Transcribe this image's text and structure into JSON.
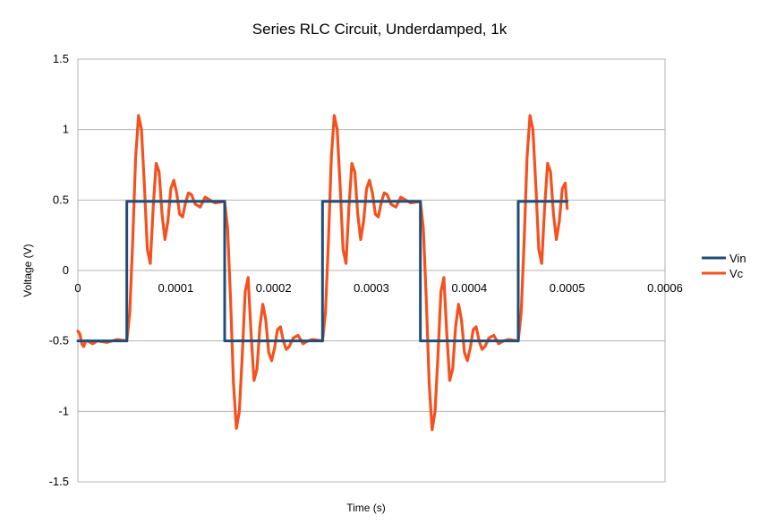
{
  "chart_data": {
    "type": "line",
    "title": "Series RLC Circuit, Underdamped, 1k",
    "xlabel": "Time (s)",
    "ylabel": "Voltage (V)",
    "xlim": [
      0,
      0.0006
    ],
    "ylim": [
      -1.5,
      1.5
    ],
    "x_ticks": [
      0,
      0.0001,
      0.0002,
      0.0003,
      0.0004,
      0.0005,
      0.0006
    ],
    "x_tick_labels": [
      "0",
      "0.0001",
      "0.0002",
      "0.0003",
      "0.0004",
      "0.0005",
      "0.0006"
    ],
    "y_ticks": [
      1.5,
      1,
      0.5,
      0,
      -0.5,
      -1,
      -1.5
    ],
    "y_tick_labels": [
      "1.5",
      "1",
      "0.5",
      "0",
      "-0.5",
      "-1",
      "-1.5"
    ],
    "grid": true,
    "legend_position": "right",
    "series": [
      {
        "name": "Vin",
        "color": "#1f4e79",
        "points": [
          [
            0,
            -0.5
          ],
          [
            5e-05,
            -0.5
          ],
          [
            5e-05,
            0.49
          ],
          [
            0.00015,
            0.49
          ],
          [
            0.00015,
            -0.5
          ],
          [
            0.00025,
            -0.5
          ],
          [
            0.00025,
            0.49
          ],
          [
            0.00035,
            0.49
          ],
          [
            0.00035,
            -0.5
          ],
          [
            0.00045,
            -0.5
          ],
          [
            0.00045,
            0.49
          ],
          [
            0.0005,
            0.49
          ]
        ]
      },
      {
        "name": "Vc",
        "color": "#f4511e",
        "points": [
          [
            0,
            -0.43
          ],
          [
            2e-06,
            -0.45
          ],
          [
            4e-06,
            -0.52
          ],
          [
            6e-06,
            -0.54
          ],
          [
            8e-06,
            -0.5
          ],
          [
            1e-05,
            -0.5
          ],
          [
            1.5e-05,
            -0.52
          ],
          [
            2e-05,
            -0.5
          ],
          [
            3e-05,
            -0.51
          ],
          [
            4e-05,
            -0.49
          ],
          [
            5e-05,
            -0.5
          ],
          [
            5.3e-05,
            -0.3
          ],
          [
            5.6e-05,
            0.2
          ],
          [
            5.9e-05,
            0.8
          ],
          [
            6.2e-05,
            1.1
          ],
          [
            6.5e-05,
            1.0
          ],
          [
            6.8e-05,
            0.6
          ],
          [
            7.1e-05,
            0.15
          ],
          [
            7.4e-05,
            0.05
          ],
          [
            7.7e-05,
            0.45
          ],
          [
            8e-05,
            0.76
          ],
          [
            8.3e-05,
            0.7
          ],
          [
            8.6e-05,
            0.4
          ],
          [
            8.9e-05,
            0.22
          ],
          [
            9.2e-05,
            0.35
          ],
          [
            9.5e-05,
            0.58
          ],
          [
            9.8e-05,
            0.64
          ],
          [
            0.000101,
            0.55
          ],
          [
            0.000104,
            0.4
          ],
          [
            0.000107,
            0.38
          ],
          [
            0.00011,
            0.48
          ],
          [
            0.000113,
            0.55
          ],
          [
            0.000116,
            0.54
          ],
          [
            0.00012,
            0.47
          ],
          [
            0.000125,
            0.45
          ],
          [
            0.00013,
            0.52
          ],
          [
            0.000135,
            0.5
          ],
          [
            0.00014,
            0.48
          ],
          [
            0.00015,
            0.49
          ],
          [
            0.000153,
            0.3
          ],
          [
            0.000156,
            -0.2
          ],
          [
            0.000159,
            -0.8
          ],
          [
            0.000162,
            -1.12
          ],
          [
            0.000165,
            -1.0
          ],
          [
            0.000168,
            -0.6
          ],
          [
            0.000171,
            -0.15
          ],
          [
            0.000174,
            -0.05
          ],
          [
            0.000177,
            -0.45
          ],
          [
            0.00018,
            -0.78
          ],
          [
            0.000183,
            -0.7
          ],
          [
            0.000186,
            -0.4
          ],
          [
            0.000189,
            -0.24
          ],
          [
            0.000192,
            -0.35
          ],
          [
            0.000195,
            -0.58
          ],
          [
            0.000198,
            -0.64
          ],
          [
            0.000201,
            -0.55
          ],
          [
            0.000204,
            -0.42
          ],
          [
            0.000207,
            -0.4
          ],
          [
            0.00021,
            -0.5
          ],
          [
            0.000213,
            -0.56
          ],
          [
            0.000216,
            -0.54
          ],
          [
            0.00022,
            -0.48
          ],
          [
            0.000225,
            -0.46
          ],
          [
            0.00023,
            -0.52
          ],
          [
            0.000235,
            -0.5
          ],
          [
            0.00024,
            -0.49
          ],
          [
            0.00025,
            -0.5
          ],
          [
            0.000253,
            -0.3
          ],
          [
            0.000256,
            0.2
          ],
          [
            0.000259,
            0.8
          ],
          [
            0.000262,
            1.1
          ],
          [
            0.000265,
            1.0
          ],
          [
            0.000268,
            0.6
          ],
          [
            0.000271,
            0.15
          ],
          [
            0.000274,
            0.05
          ],
          [
            0.000277,
            0.45
          ],
          [
            0.00028,
            0.76
          ],
          [
            0.000283,
            0.7
          ],
          [
            0.000286,
            0.4
          ],
          [
            0.000289,
            0.22
          ],
          [
            0.000292,
            0.35
          ],
          [
            0.000295,
            0.58
          ],
          [
            0.000298,
            0.64
          ],
          [
            0.000301,
            0.55
          ],
          [
            0.000304,
            0.4
          ],
          [
            0.000307,
            0.38
          ],
          [
            0.00031,
            0.48
          ],
          [
            0.000313,
            0.55
          ],
          [
            0.000316,
            0.54
          ],
          [
            0.00032,
            0.47
          ],
          [
            0.000325,
            0.45
          ],
          [
            0.00033,
            0.52
          ],
          [
            0.000335,
            0.5
          ],
          [
            0.00034,
            0.48
          ],
          [
            0.00035,
            0.49
          ],
          [
            0.000353,
            0.3
          ],
          [
            0.000356,
            -0.2
          ],
          [
            0.000359,
            -0.8
          ],
          [
            0.000362,
            -1.13
          ],
          [
            0.000365,
            -1.0
          ],
          [
            0.000368,
            -0.6
          ],
          [
            0.000371,
            -0.15
          ],
          [
            0.000374,
            -0.05
          ],
          [
            0.000377,
            -0.45
          ],
          [
            0.00038,
            -0.78
          ],
          [
            0.000383,
            -0.7
          ],
          [
            0.000386,
            -0.4
          ],
          [
            0.000389,
            -0.24
          ],
          [
            0.000392,
            -0.35
          ],
          [
            0.000395,
            -0.58
          ],
          [
            0.000398,
            -0.64
          ],
          [
            0.000401,
            -0.55
          ],
          [
            0.000404,
            -0.42
          ],
          [
            0.000407,
            -0.4
          ],
          [
            0.00041,
            -0.5
          ],
          [
            0.000413,
            -0.56
          ],
          [
            0.000416,
            -0.54
          ],
          [
            0.00042,
            -0.48
          ],
          [
            0.000425,
            -0.46
          ],
          [
            0.00043,
            -0.52
          ],
          [
            0.000435,
            -0.5
          ],
          [
            0.00044,
            -0.49
          ],
          [
            0.00045,
            -0.5
          ],
          [
            0.000453,
            -0.3
          ],
          [
            0.000456,
            0.2
          ],
          [
            0.000459,
            0.8
          ],
          [
            0.000462,
            1.1
          ],
          [
            0.000465,
            1.0
          ],
          [
            0.000468,
            0.6
          ],
          [
            0.000471,
            0.15
          ],
          [
            0.000474,
            0.05
          ],
          [
            0.000477,
            0.45
          ],
          [
            0.00048,
            0.76
          ],
          [
            0.000483,
            0.7
          ],
          [
            0.000486,
            0.4
          ],
          [
            0.000489,
            0.22
          ],
          [
            0.000492,
            0.35
          ],
          [
            0.000495,
            0.58
          ],
          [
            0.000498,
            0.62
          ],
          [
            0.0005,
            0.44
          ]
        ]
      }
    ]
  }
}
